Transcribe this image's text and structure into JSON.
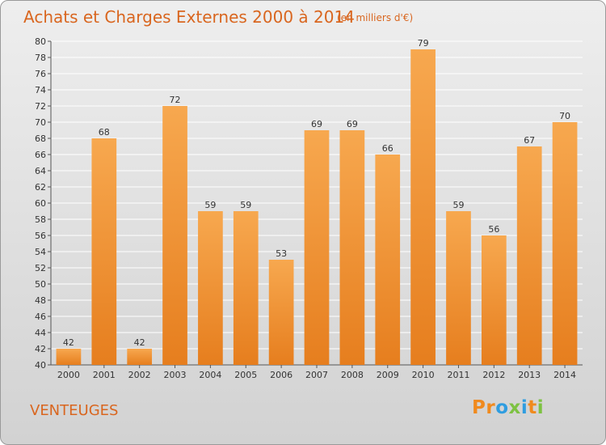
{
  "title": "Achats et Charges Externes 2000 à 2014",
  "subtitle": "(en milliers d'€)",
  "commune": "VENTEUGES",
  "logo": {
    "letters": [
      "P",
      "r",
      "o",
      "x",
      "i",
      "t",
      "i"
    ],
    "colors": [
      "#f08a1e",
      "#f08a1e",
      "#2f9de0",
      "#7dc242",
      "#2f9de0",
      "#f08a1e",
      "#7dc242"
    ]
  },
  "colors": {
    "bar_light": "#f7a84f",
    "bar_dark": "#e67e1e",
    "accent": "#d9661f"
  },
  "chart_data": {
    "type": "bar",
    "title": "Achats et Charges Externes 2000 à 2014",
    "subtitle": "(en milliers d'€)",
    "categories": [
      "2000",
      "2001",
      "2002",
      "2003",
      "2004",
      "2005",
      "2006",
      "2007",
      "2008",
      "2009",
      "2010",
      "2011",
      "2012",
      "2013",
      "2014"
    ],
    "values": [
      42,
      68,
      42,
      72,
      59,
      59,
      53,
      69,
      69,
      66,
      79,
      59,
      56,
      67,
      70
    ],
    "ylim": [
      40,
      80
    ],
    "ytick_step": 2,
    "grid": true,
    "xlabel": "",
    "ylabel": ""
  }
}
